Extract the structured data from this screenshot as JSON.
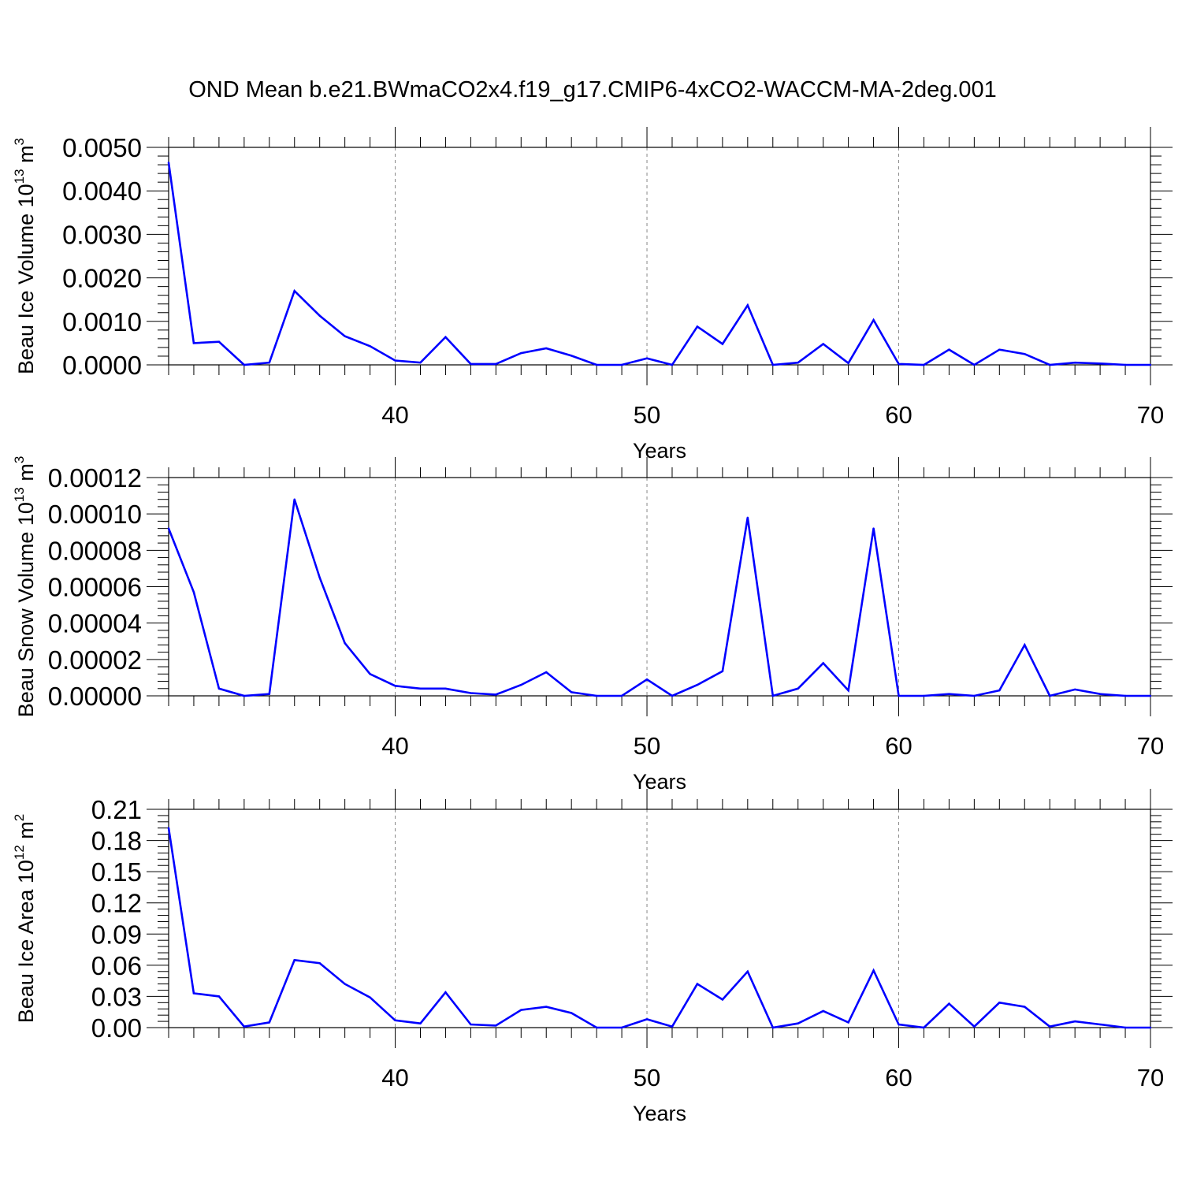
{
  "title": "OND Mean b.e21.BWmaCO2x4.f19_g17.CMIP6-4xCO2-WACCM-MA-2deg.001",
  "line_color": "#0000ff",
  "grid_color": "#888888",
  "chart_data": [
    {
      "type": "line",
      "xlabel": "Years",
      "ylabel": {
        "base": "Beau Ice Volume 10",
        "exp": "13",
        "unit": " m",
        "unit_exp": "3"
      },
      "xlim": [
        31,
        70
      ],
      "ylim": [
        0,
        0.005
      ],
      "xticks": [
        40,
        50,
        60,
        70
      ],
      "yticks": [
        "0.0000",
        "0.0010",
        "0.0020",
        "0.0030",
        "0.0040",
        "0.0050"
      ],
      "ytick_values": [
        0,
        0.001,
        0.002,
        0.003,
        0.004,
        0.005
      ],
      "grid_x": [
        40,
        50,
        60
      ],
      "x": [
        31,
        32,
        33,
        34,
        35,
        36,
        37,
        38,
        39,
        40,
        41,
        42,
        43,
        44,
        45,
        46,
        47,
        48,
        49,
        50,
        51,
        52,
        53,
        54,
        55,
        56,
        57,
        58,
        59,
        60,
        61,
        62,
        63,
        64,
        65,
        66,
        67,
        68,
        69,
        70
      ],
      "y": [
        0.00465,
        0.0005,
        0.00053,
        0.0,
        5e-05,
        0.0017,
        0.00113,
        0.00066,
        0.00043,
        0.0001,
        5e-05,
        0.00064,
        2e-05,
        2e-05,
        0.00027,
        0.00038,
        0.00021,
        0.0,
        0.0,
        0.00015,
        0.0,
        0.00088,
        0.00048,
        0.00137,
        0.0,
        5e-05,
        0.00048,
        4e-05,
        0.00103,
        2e-05,
        0.0,
        0.00035,
        0.0,
        0.00035,
        0.00025,
        0.0,
        5e-05,
        3e-05,
        0.0,
        0.0
      ]
    },
    {
      "type": "line",
      "xlabel": "Years",
      "ylabel": {
        "base": "Beau Snow Volume 10",
        "exp": "13",
        "unit": " m",
        "unit_exp": "3"
      },
      "xlim": [
        31,
        70
      ],
      "ylim": [
        0,
        0.00012
      ],
      "xticks": [
        40,
        50,
        60,
        70
      ],
      "yticks": [
        "0.00000",
        "0.00002",
        "0.00004",
        "0.00006",
        "0.00008",
        "0.00010",
        "0.00012"
      ],
      "ytick_values": [
        0,
        2e-05,
        4e-05,
        6e-05,
        8e-05,
        0.0001,
        0.00012
      ],
      "grid_x": [
        40,
        50,
        60
      ],
      "x": [
        31,
        32,
        33,
        34,
        35,
        36,
        37,
        38,
        39,
        40,
        41,
        42,
        43,
        44,
        45,
        46,
        47,
        48,
        49,
        50,
        51,
        52,
        53,
        54,
        55,
        56,
        57,
        58,
        59,
        60,
        61,
        62,
        63,
        64,
        65,
        66,
        67,
        68,
        69,
        70
      ],
      "y": [
        9.2e-05,
        5.7e-05,
        4e-06,
        0.0,
        1e-06,
        0.000108,
        6.5e-05,
        2.9e-05,
        1.2e-05,
        5.5e-06,
        4e-06,
        4e-06,
        1.5e-06,
        7e-07,
        6e-06,
        1.3e-05,
        2e-06,
        0.0,
        0.0,
        9e-06,
        0.0,
        6e-06,
        1.35e-05,
        9.8e-05,
        0.0,
        4e-06,
        1.8e-05,
        3e-06,
        9.2e-05,
        0.0,
        0.0,
        1e-06,
        0.0,
        3e-06,
        2.8e-05,
        0.0,
        3.5e-06,
        1e-06,
        0.0,
        0.0
      ]
    },
    {
      "type": "line",
      "xlabel": "Years",
      "ylabel": {
        "base": "Beau Ice Area 10",
        "exp": "12",
        "unit": " m",
        "unit_exp": "2"
      },
      "xlim": [
        31,
        70
      ],
      "ylim": [
        0,
        0.21
      ],
      "xticks": [
        40,
        50,
        60,
        70
      ],
      "yticks": [
        "0.00",
        "0.03",
        "0.06",
        "0.09",
        "0.12",
        "0.15",
        "0.18",
        "0.21"
      ],
      "ytick_values": [
        0,
        0.03,
        0.06,
        0.09,
        0.12,
        0.15,
        0.18,
        0.21
      ],
      "grid_x": [
        40,
        50,
        60
      ],
      "x": [
        31,
        32,
        33,
        34,
        35,
        36,
        37,
        38,
        39,
        40,
        41,
        42,
        43,
        44,
        45,
        46,
        47,
        48,
        49,
        50,
        51,
        52,
        53,
        54,
        55,
        56,
        57,
        58,
        59,
        60,
        61,
        62,
        63,
        64,
        65,
        66,
        67,
        68,
        69,
        70
      ],
      "y": [
        0.192,
        0.033,
        0.03,
        0.001,
        0.005,
        0.065,
        0.062,
        0.042,
        0.029,
        0.007,
        0.004,
        0.034,
        0.003,
        0.002,
        0.017,
        0.02,
        0.014,
        0.0,
        0.0,
        0.008,
        0.001,
        0.042,
        0.027,
        0.054,
        0.0,
        0.004,
        0.016,
        0.005,
        0.055,
        0.003,
        0.0,
        0.023,
        0.001,
        0.024,
        0.02,
        0.001,
        0.006,
        0.003,
        0.0,
        0.0
      ]
    }
  ]
}
